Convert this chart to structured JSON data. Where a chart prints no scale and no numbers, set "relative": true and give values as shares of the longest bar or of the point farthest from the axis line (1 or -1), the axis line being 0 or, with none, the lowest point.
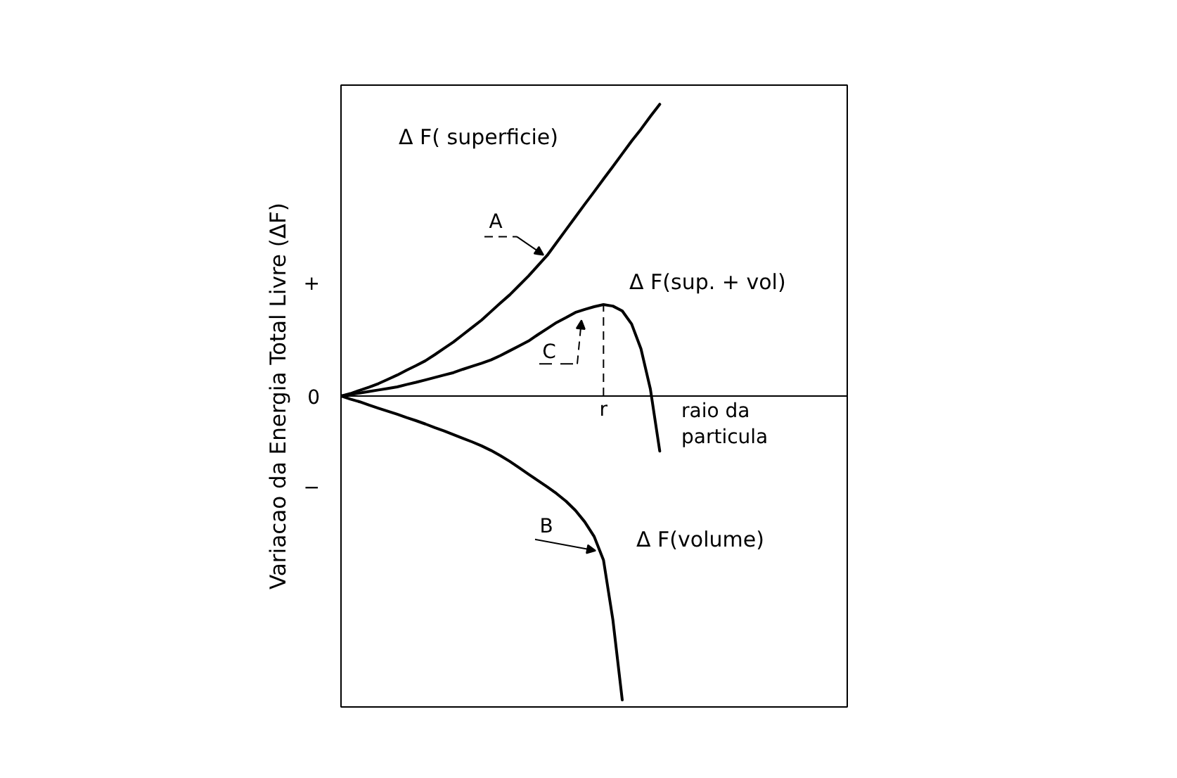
{
  "chart_data": {
    "type": "line",
    "relative": true,
    "ylabel": "Variacao da Energia Total Livre (ΔF)",
    "xlabel": "raio da particula",
    "categories": [
      null,
      null,
      null,
      null,
      null,
      null,
      null,
      null,
      null,
      null,
      null,
      null,
      null,
      null,
      null,
      null,
      null,
      null,
      null,
      null,
      null,
      null,
      null,
      null,
      null,
      null,
      null,
      null,
      null,
      null,
      null,
      null,
      null,
      null,
      null,
      null,
      null,
      null,
      null,
      null,
      null,
      null,
      null,
      null,
      null,
      null,
      null,
      null,
      null,
      null,
      null,
      null,
      null,
      null,
      null
    ],
    "series": [
      {
        "name": "Δ F( superficie)",
        "color": "#000000",
        "values": [
          0,
          0.008,
          0.019,
          0.029,
          0.041,
          0.055,
          0.069,
          0.085,
          0.1,
          0.116,
          0.136,
          0.157,
          0.178,
          0.202,
          0.226,
          0.25,
          0.278,
          0.306,
          0.333,
          0.364,
          0.395,
          0.429,
          0.463,
          0.505,
          0.547,
          0.589,
          0.631,
          0.672,
          0.714,
          0.755,
          0.797,
          0.839,
          0.878,
          0.92,
          0.96,
          null,
          null,
          null,
          null,
          null,
          null,
          null,
          null,
          null,
          null,
          null,
          null,
          null,
          null,
          null,
          null,
          null,
          null,
          null,
          null
        ]
      },
      {
        "name": "Δ F(volume)",
        "color": "#000000",
        "values": [
          0,
          -0.01,
          -0.019,
          -0.03,
          -0.04,
          -0.05,
          -0.06,
          -0.071,
          -0.081,
          -0.092,
          -0.104,
          -0.115,
          -0.127,
          -0.139,
          -0.151,
          -0.164,
          -0.179,
          -0.196,
          -0.215,
          -0.236,
          -0.257,
          -0.278,
          -0.299,
          -0.321,
          -0.346,
          -0.376,
          -0.414,
          -0.462,
          -0.54,
          -0.736,
          -1,
          null,
          null,
          null,
          null,
          null,
          null,
          null,
          null,
          null,
          null,
          null,
          null,
          null,
          null,
          null,
          null,
          null,
          null,
          null,
          null,
          null,
          null,
          null,
          null
        ]
      },
      {
        "name": "Δ F(sup. + vol)",
        "color": "#000000",
        "values": [
          0,
          0.005,
          0.01,
          0.015,
          0.02,
          0.025,
          0.03,
          0.038,
          0.045,
          0.053,
          0.061,
          0.069,
          0.077,
          0.088,
          0.098,
          0.108,
          0.119,
          0.133,
          0.149,
          0.165,
          0.181,
          0.202,
          0.222,
          0.242,
          0.258,
          0.275,
          0.285,
          0.294,
          0.301,
          0.296,
          0.28,
          0.237,
          0.155,
          0.023,
          -0.181,
          null,
          null,
          null,
          null,
          null,
          null,
          null,
          null,
          null,
          null,
          null,
          null,
          null,
          null,
          null,
          null,
          null,
          null,
          null,
          null
        ]
      }
    ],
    "annotations": [
      "+",
      "0",
      "−",
      "A",
      "B",
      "C",
      "r"
    ]
  }
}
